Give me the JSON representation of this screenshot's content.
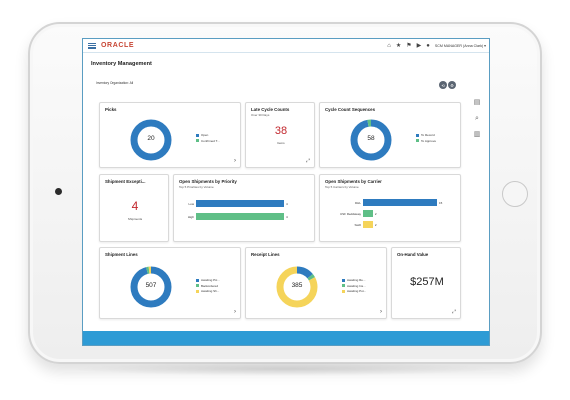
{
  "brand": {
    "name": "ORACLE",
    "color": "#c74634"
  },
  "topbar": {
    "icons": [
      "home-icon",
      "star-icon",
      "flag-icon",
      "notification-icon",
      "user-icon"
    ],
    "user_label": "SCM MANAGER (Anna Clark) ▾"
  },
  "page": {
    "title": "Inventory Management",
    "organization": "Inventory Organization: All",
    "header_icons": [
      "refresh-icon",
      "settings-icon"
    ]
  },
  "rail": {
    "icons": [
      "clipboard-icon",
      "search-icon",
      "chart-icon"
    ]
  },
  "colors": {
    "blue": "#2e7bbf",
    "green": "#5fbf87",
    "yellow": "#f5d45a",
    "red": "#c2272d",
    "screen_bg": "#2e9bd5"
  },
  "cards": {
    "picks": {
      "title": "Picks",
      "value": "20",
      "legend": [
        "Open",
        "Confirmed T..."
      ],
      "segments": [
        {
          "name": "Open",
          "value": 100,
          "color": "#2e7bbf"
        }
      ]
    },
    "late_cycle": {
      "title": "Late Cycle Counts",
      "subtitle": "Over 30 Days",
      "value": "38",
      "unit": "Items"
    },
    "cycle_sequences": {
      "title": "Cycle Count Sequences",
      "value": "58",
      "legend": [
        "To Record",
        "To Approve"
      ],
      "segments": [
        {
          "name": "To Record",
          "value": 97,
          "color": "#2e7bbf"
        },
        {
          "name": "To Approve",
          "value": 3,
          "color": "#5fbf87"
        }
      ]
    },
    "shipment_exceptions": {
      "title": "Shipment Excepti...",
      "value": "4",
      "unit": "Shipments"
    },
    "priority": {
      "title": "Open Shipments by Priority",
      "subtitle": "Top 5 Priorities by Volume"
    },
    "carrier": {
      "title": "Open Shipments by Carrier",
      "subtitle": "Top 5 Carriers by Volume"
    },
    "shipment_lines": {
      "title": "Shipment Lines",
      "value": "507",
      "legend": [
        "Awaiting Pic...",
        "Backordered",
        "Awaiting Sh..."
      ],
      "segments": [
        {
          "name": "Awaiting Pick",
          "value": 96,
          "color": "#2e7bbf"
        },
        {
          "name": "Backordered",
          "value": 2,
          "color": "#5fbf87"
        },
        {
          "name": "Awaiting Ship",
          "value": 2,
          "color": "#f5d45a"
        }
      ]
    },
    "receipt_lines": {
      "title": "Receipt Lines",
      "value": "385",
      "legend": [
        "Awaiting Re...",
        "Awaiting Ins...",
        "Awaiting Put..."
      ],
      "segments": [
        {
          "name": "Awaiting Receipt",
          "value": 14,
          "color": "#2e7bbf"
        },
        {
          "name": "Awaiting Inspection",
          "value": 3,
          "color": "#5fbf87"
        },
        {
          "name": "Awaiting Putaway",
          "value": 83,
          "color": "#f5d45a"
        }
      ]
    },
    "on_hand": {
      "title": "On-Hand Value",
      "value": "$257M"
    }
  },
  "chart_data": [
    {
      "type": "bar",
      "orientation": "horizontal",
      "title": "Open Shipments by Priority",
      "subtitle": "Top 5 Priorities by Volume",
      "categories": [
        "Low",
        "High"
      ],
      "values": [
        4,
        4
      ],
      "colors": [
        "#2e7bbf",
        "#5fbf87"
      ],
      "xlim": [
        0,
        4
      ]
    },
    {
      "type": "bar",
      "orientation": "horizontal",
      "title": "Open Shipments by Carrier",
      "subtitle": "Top 5 Carriers by Volume",
      "categories": [
        "DHL",
        "USF Reddaway",
        "Swift"
      ],
      "values": [
        15,
        2,
        2
      ],
      "colors": [
        "#2e7bbf",
        "#5fbf87",
        "#f5d45a"
      ],
      "xlim": [
        0,
        15
      ]
    }
  ]
}
